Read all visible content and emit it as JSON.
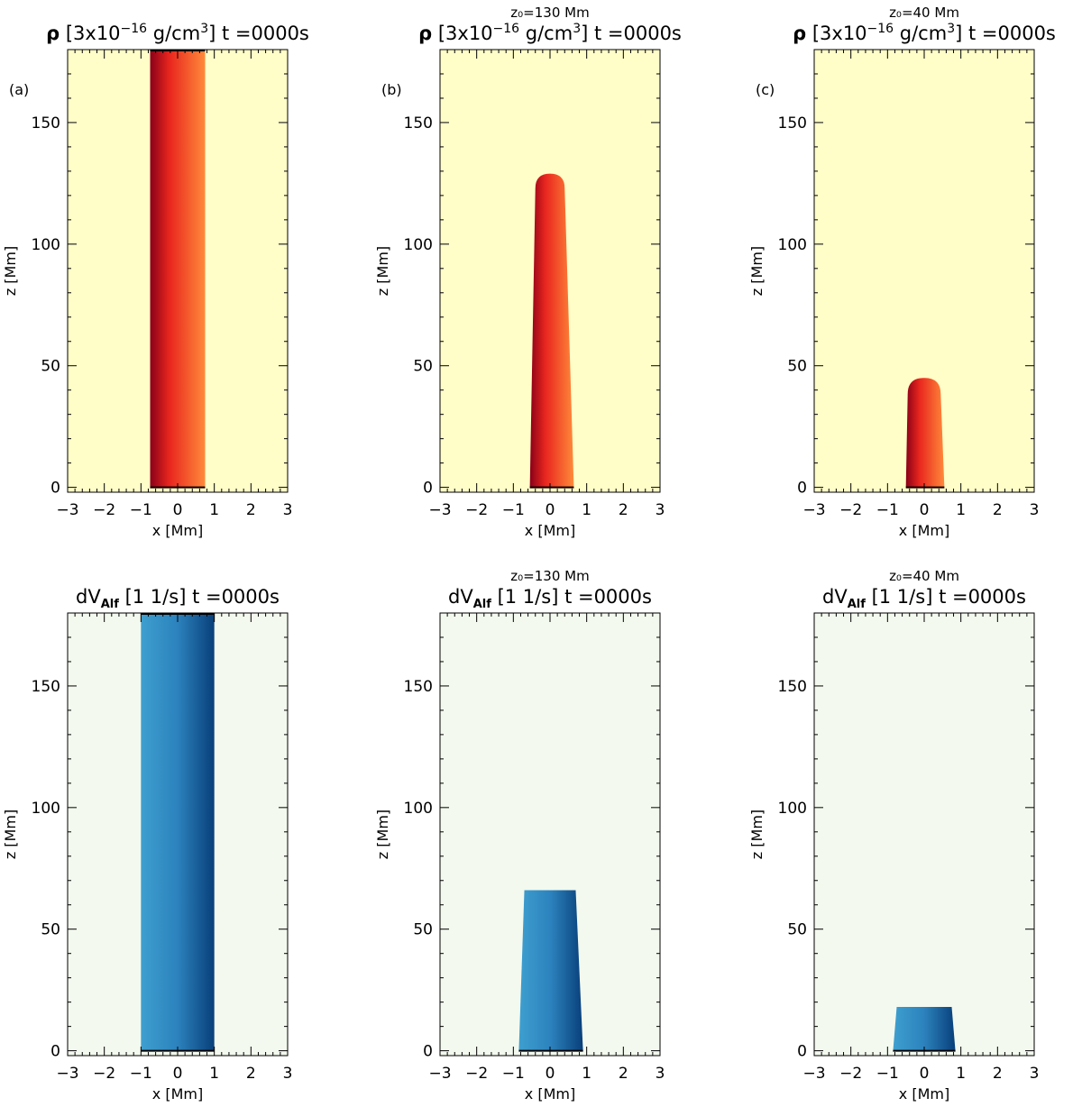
{
  "colors": {
    "rho_bg": "#fffdc8",
    "rho_dark": "#8a0018",
    "rho_mid": "#e8261e",
    "rho_light": "#ff8a3a",
    "dv_bg": "#f3f9ee",
    "dv_light": "#3e9fcf",
    "dv_mid": "#2c82bd",
    "dv_dark": "#083f7a"
  },
  "chart_data": [
    {
      "type": "heatmap",
      "quantity": "rho",
      "title_symbol": "ρ",
      "title_unit": "[3x10",
      "title_exp": "−16",
      "title_unit2": "g/cm",
      "title_unit2_exp": "3",
      "title_bracket_close": "]",
      "title_time": "t =0000s",
      "subtitle": "",
      "panel_label": "(a)",
      "xlabel": "x [Mm]",
      "ylabel": "z [Mm]",
      "xlim": [
        -3,
        3
      ],
      "ylim": [
        -2,
        180
      ],
      "xticks": [
        "−3",
        "−2",
        "−1",
        "0",
        "1",
        "2",
        "3"
      ],
      "yticks": [
        "0",
        "50",
        "100",
        "150"
      ],
      "column": {
        "x_left": -0.75,
        "x_right": 0.75,
        "x_left_top": -0.75,
        "x_right_top": 0.75,
        "z_top": 180,
        "rounded_top": false
      }
    },
    {
      "type": "heatmap",
      "quantity": "rho",
      "title_symbol": "ρ",
      "title_unit": "[3x10",
      "title_exp": "−16",
      "title_unit2": "g/cm",
      "title_unit2_exp": "3",
      "title_bracket_close": "]",
      "title_time": "t =0000s",
      "subtitle": "z₀=130 Mm",
      "panel_label": "(b)",
      "xlabel": "x [Mm]",
      "ylabel": "z [Mm]",
      "xlim": [
        -3,
        3
      ],
      "ylim": [
        -2,
        180
      ],
      "xticks": [
        "−3",
        "−2",
        "−1",
        "0",
        "1",
        "2",
        "3"
      ],
      "yticks": [
        "0",
        "50",
        "100",
        "150"
      ],
      "column": {
        "x_left": -0.55,
        "x_right": 0.65,
        "x_left_top": -0.4,
        "x_right_top": 0.4,
        "z_top": 129,
        "rounded_top": true
      }
    },
    {
      "type": "heatmap",
      "quantity": "rho",
      "title_symbol": "ρ",
      "title_unit": "[3x10",
      "title_exp": "−16",
      "title_unit2": "g/cm",
      "title_unit2_exp": "3",
      "title_bracket_close": "]",
      "title_time": "t =0000s",
      "subtitle": "z₀=40 Mm",
      "panel_label": "(c)",
      "xlabel": "x [Mm]",
      "ylabel": "z [Mm]",
      "xlim": [
        -3,
        3
      ],
      "ylim": [
        -2,
        180
      ],
      "xticks": [
        "−3",
        "−2",
        "−1",
        "0",
        "1",
        "2",
        "3"
      ],
      "yticks": [
        "0",
        "50",
        "100",
        "150"
      ],
      "column": {
        "x_left": -0.5,
        "x_right": 0.55,
        "x_left_top": -0.45,
        "x_right_top": 0.45,
        "z_top": 45,
        "rounded_top": true
      }
    },
    {
      "type": "heatmap",
      "quantity": "dVAlf",
      "title_symbol": "dV",
      "title_sub": "Alf",
      "title_unit": "[1 1/s]",
      "title_time": "t =0000s",
      "subtitle": "",
      "panel_label": "",
      "xlabel": "x [Mm]",
      "ylabel": "z [Mm]",
      "xlim": [
        -3,
        3
      ],
      "ylim": [
        -2,
        180
      ],
      "xticks": [
        "−3",
        "−2",
        "−1",
        "0",
        "1",
        "2",
        "3"
      ],
      "yticks": [
        "0",
        "50",
        "100",
        "150"
      ],
      "column": {
        "x_left": -1.0,
        "x_right": 1.0,
        "x_left_top": -1.0,
        "x_right_top": 1.0,
        "z_top": 180,
        "rounded_top": false
      }
    },
    {
      "type": "heatmap",
      "quantity": "dVAlf",
      "title_symbol": "dV",
      "title_sub": "Alf",
      "title_unit": "[1 1/s]",
      "title_time": "t =0000s",
      "subtitle": "z₀=130 Mm",
      "panel_label": "",
      "xlabel": "x [Mm]",
      "ylabel": "z [Mm]",
      "xlim": [
        -3,
        3
      ],
      "ylim": [
        -2,
        180
      ],
      "xticks": [
        "−3",
        "−2",
        "−1",
        "0",
        "1",
        "2",
        "3"
      ],
      "yticks": [
        "0",
        "50",
        "100",
        "150"
      ],
      "column": {
        "x_left": -0.85,
        "x_right": 0.9,
        "x_left_top": -0.7,
        "x_right_top": 0.7,
        "z_top": 66,
        "rounded_top": false
      }
    },
    {
      "type": "heatmap",
      "quantity": "dVAlf",
      "title_symbol": "dV",
      "title_sub": "Alf",
      "title_unit": "[1 1/s]",
      "title_time": "t =0000s",
      "subtitle": "z₀=40 Mm",
      "panel_label": "",
      "xlabel": "x [Mm]",
      "ylabel": "z [Mm]",
      "xlim": [
        -3,
        3
      ],
      "ylim": [
        -2,
        180
      ],
      "xticks": [
        "−3",
        "−2",
        "−1",
        "0",
        "1",
        "2",
        "3"
      ],
      "yticks": [
        "0",
        "50",
        "100",
        "150"
      ],
      "column": {
        "x_left": -0.85,
        "x_right": 0.85,
        "x_left_top": -0.75,
        "x_right_top": 0.75,
        "z_top": 18,
        "rounded_top": false
      }
    }
  ]
}
